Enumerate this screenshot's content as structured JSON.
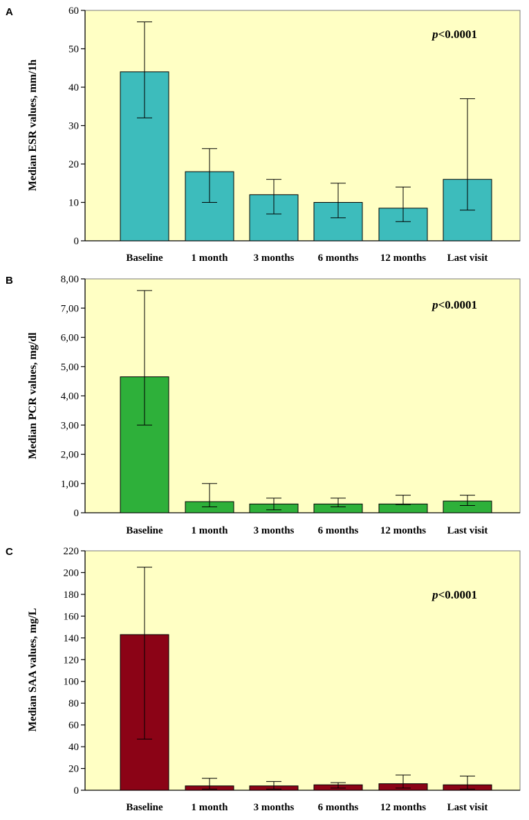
{
  "chart_data": [
    {
      "type": "bar",
      "panel": "A",
      "ylabel": "Median ESR values, mm/1h",
      "categories": [
        "Baseline",
        "1 month",
        "3 months",
        "6 months",
        "12 months",
        "Last visit"
      ],
      "values": [
        44,
        18,
        12,
        10,
        8.5,
        16
      ],
      "error_low": [
        32,
        10,
        7,
        6,
        5,
        8
      ],
      "error_high": [
        57,
        24,
        16,
        15,
        14,
        37
      ],
      "ylim": [
        0,
        60
      ],
      "yticks": [
        0,
        10,
        20,
        30,
        40,
        50,
        60
      ],
      "ytick_labels": [
        "0",
        "10",
        "20",
        "30",
        "40",
        "50",
        "60"
      ],
      "annotation": {
        "italic": "p",
        "text": "<0.0001"
      },
      "bar_color": "#3dbcbc",
      "background": "#ffffc4"
    },
    {
      "type": "bar",
      "panel": "B",
      "ylabel": "Median PCR values, mg/dl",
      "categories": [
        "Baseline",
        "1 month",
        "3 months",
        "6 months",
        "12 months",
        "Last visit"
      ],
      "values": [
        4.65,
        0.38,
        0.3,
        0.3,
        0.3,
        0.4
      ],
      "error_low": [
        3.0,
        0.2,
        0.1,
        0.2,
        0.28,
        0.25
      ],
      "error_high": [
        7.6,
        1.0,
        0.5,
        0.5,
        0.6,
        0.6
      ],
      "ylim": [
        0,
        8
      ],
      "yticks": [
        0,
        1,
        2,
        3,
        4,
        5,
        6,
        7,
        8
      ],
      "ytick_labels": [
        "0",
        "1,00",
        "2,00",
        "3,00",
        "4,00",
        "5,00",
        "6,00",
        "7,00",
        "8,00"
      ],
      "annotation": {
        "italic": "p",
        "text": "<0.0001"
      },
      "bar_color": "#2eb03a",
      "background": "#ffffc4"
    },
    {
      "type": "bar",
      "panel": "C",
      "ylabel": "Median SAA values, mg/L",
      "categories": [
        "Baseline",
        "1 month",
        "3 months",
        "6 months",
        "12 months",
        "Last visit"
      ],
      "values": [
        143,
        4,
        4,
        5,
        6,
        5
      ],
      "error_low": [
        47,
        1,
        1,
        2,
        2,
        1
      ],
      "error_high": [
        205,
        11,
        8,
        7,
        14,
        13
      ],
      "ylim": [
        0,
        220
      ],
      "yticks": [
        0,
        20,
        40,
        60,
        80,
        100,
        120,
        140,
        160,
        180,
        200,
        220
      ],
      "ytick_labels": [
        "0",
        "20",
        "40",
        "60",
        "80",
        "100",
        "120",
        "140",
        "160",
        "180",
        "200",
        "220"
      ],
      "annotation": {
        "italic": "p",
        "text": "<0.0001"
      },
      "bar_color": "#8b0316",
      "background": "#ffffc4"
    }
  ]
}
